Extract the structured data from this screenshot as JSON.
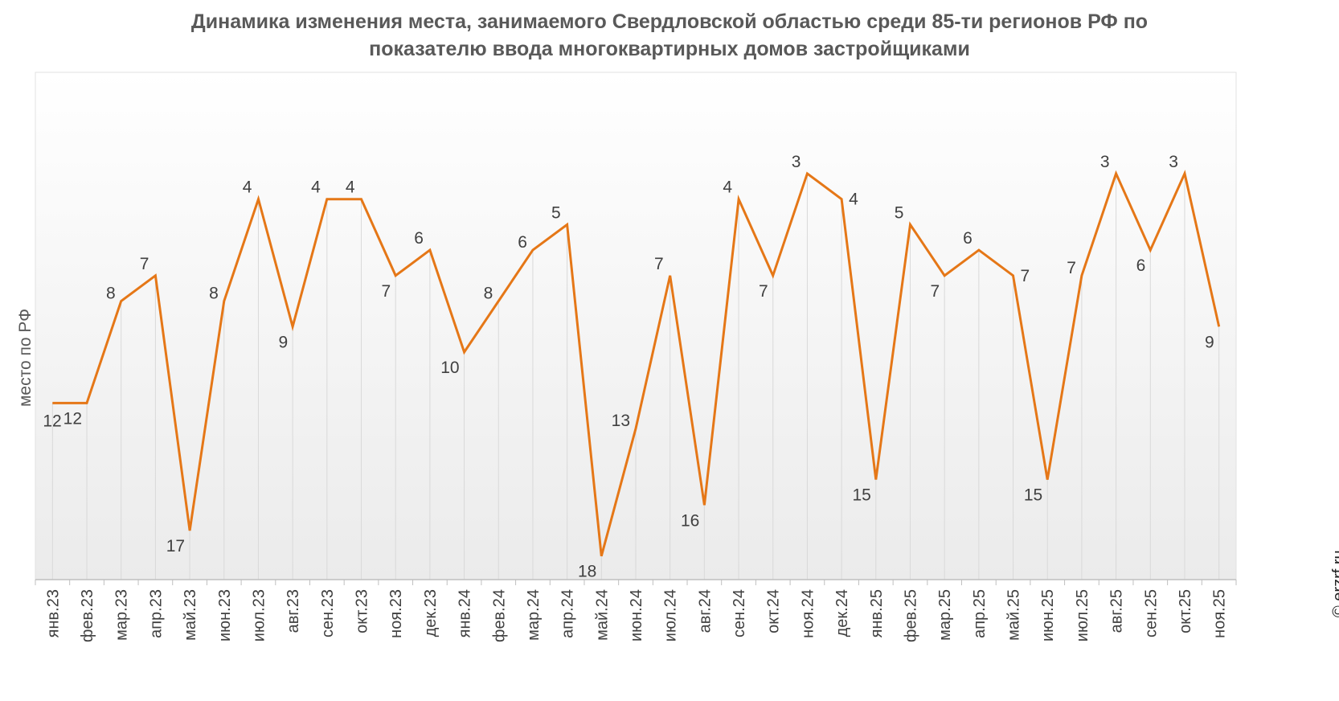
{
  "chart_data": {
    "type": "line",
    "title": [
      "Динамика изменения места, занимаемого Свердловской областью среди 85-ти регионов РФ по",
      "показателю ввода многоквартирных домов застройщиками"
    ],
    "ylabel": "место по РФ",
    "y_inverted": true,
    "ylim": [
      20,
      1
    ],
    "grid": "vertical",
    "line_color": "#e57717",
    "categories": [
      "янв.23",
      "фев.23",
      "мар.23",
      "апр.23",
      "май.23",
      "июн.23",
      "июл.23",
      "авг.23",
      "сен.23",
      "окт.23",
      "ноя.23",
      "дек.23",
      "янв.24",
      "фев.24",
      "мар.24",
      "апр.24",
      "май.24",
      "июн.24",
      "июл.24",
      "авг.24",
      "сен.24",
      "окт.24",
      "ноя.24",
      "дек.24",
      "янв.25",
      "фев.25",
      "мар.25",
      "апр.25",
      "май.25",
      "июн.25",
      "июл.25",
      "авг.25",
      "сен.25",
      "окт.25",
      "ноя.25"
    ],
    "values": [
      12,
      12,
      8,
      7,
      17,
      8,
      4,
      9,
      4,
      4,
      7,
      6,
      10,
      8,
      6,
      5,
      18,
      13,
      7,
      16,
      4,
      7,
      3,
      4,
      15,
      5,
      7,
      6,
      7,
      15,
      7,
      3,
      6,
      3,
      9
    ]
  },
  "credit": "© erzrf.ru"
}
